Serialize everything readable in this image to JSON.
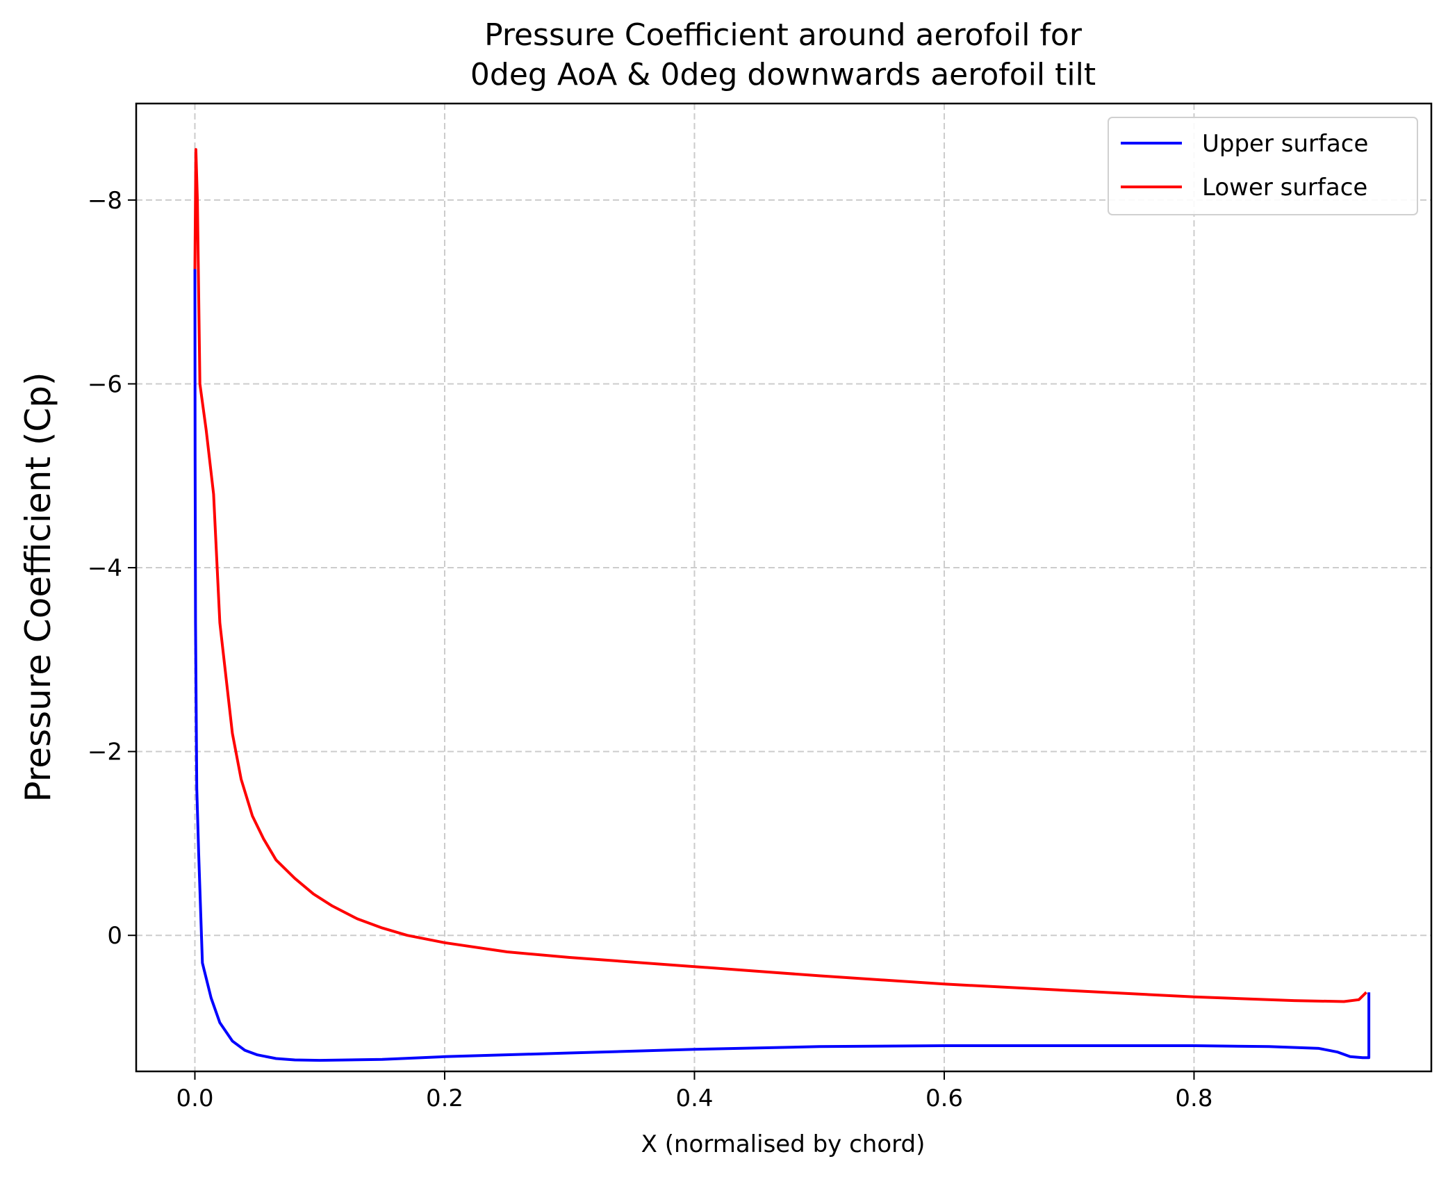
{
  "chart_data": {
    "type": "line",
    "title_line1": "Pressure Coefficient around aerofoil for",
    "title_line2": "0deg AoA & 0deg downwards aerofoil tilt",
    "xlabel": "X (normalised by chord)",
    "ylabel": "Pressure Coefficient (Cp)",
    "xlim": [
      -0.047,
      0.99
    ],
    "ylim": [
      1.48,
      -9.05
    ],
    "y_inverted": true,
    "grid": true,
    "legend_placement": "top-right",
    "x_ticks": [
      0.0,
      0.2,
      0.4,
      0.6,
      0.8
    ],
    "x_tick_labels": [
      "0.0",
      "0.2",
      "0.4",
      "0.6",
      "0.8"
    ],
    "y_ticks": [
      -8,
      -6,
      -4,
      -2,
      0
    ],
    "y_tick_labels": [
      "−8",
      "−6",
      "−4",
      "−2",
      "0"
    ],
    "series": [
      {
        "name": "Upper surface",
        "color": "#0000ff",
        "points": [
          [
            0.0,
            -7.25
          ],
          [
            0.0002,
            -5.2
          ],
          [
            0.0005,
            -3.4
          ],
          [
            0.0015,
            -1.6
          ],
          [
            0.003,
            -0.9
          ],
          [
            0.006,
            0.3
          ],
          [
            0.013,
            0.68
          ],
          [
            0.02,
            0.95
          ],
          [
            0.03,
            1.15
          ],
          [
            0.04,
            1.25
          ],
          [
            0.05,
            1.3
          ],
          [
            0.065,
            1.34
          ],
          [
            0.08,
            1.355
          ],
          [
            0.1,
            1.36
          ],
          [
            0.15,
            1.35
          ],
          [
            0.2,
            1.32
          ],
          [
            0.3,
            1.28
          ],
          [
            0.4,
            1.24
          ],
          [
            0.5,
            1.21
          ],
          [
            0.6,
            1.2
          ],
          [
            0.7,
            1.2
          ],
          [
            0.8,
            1.2
          ],
          [
            0.86,
            1.21
          ],
          [
            0.9,
            1.23
          ],
          [
            0.915,
            1.27
          ],
          [
            0.925,
            1.32
          ],
          [
            0.935,
            1.33
          ],
          [
            0.94,
            1.33
          ],
          [
            0.94,
            0.62
          ]
        ]
      },
      {
        "name": "Lower surface",
        "color": "#ff0000",
        "points": [
          [
            0.0,
            -7.25
          ],
          [
            0.0008,
            -8.55
          ],
          [
            0.002,
            -8.0
          ],
          [
            0.004,
            -6.0
          ],
          [
            0.009,
            -5.5
          ],
          [
            0.015,
            -4.8
          ],
          [
            0.02,
            -3.4
          ],
          [
            0.025,
            -2.8
          ],
          [
            0.03,
            -2.2
          ],
          [
            0.037,
            -1.7
          ],
          [
            0.046,
            -1.3
          ],
          [
            0.055,
            -1.05
          ],
          [
            0.065,
            -0.82
          ],
          [
            0.08,
            -0.62
          ],
          [
            0.095,
            -0.45
          ],
          [
            0.11,
            -0.32
          ],
          [
            0.13,
            -0.18
          ],
          [
            0.15,
            -0.08
          ],
          [
            0.17,
            0.0
          ],
          [
            0.2,
            0.08
          ],
          [
            0.25,
            0.18
          ],
          [
            0.3,
            0.24
          ],
          [
            0.4,
            0.34
          ],
          [
            0.5,
            0.44
          ],
          [
            0.6,
            0.53
          ],
          [
            0.7,
            0.6
          ],
          [
            0.8,
            0.67
          ],
          [
            0.88,
            0.71
          ],
          [
            0.92,
            0.72
          ],
          [
            0.932,
            0.7
          ],
          [
            0.938,
            0.62
          ]
        ]
      }
    ]
  }
}
